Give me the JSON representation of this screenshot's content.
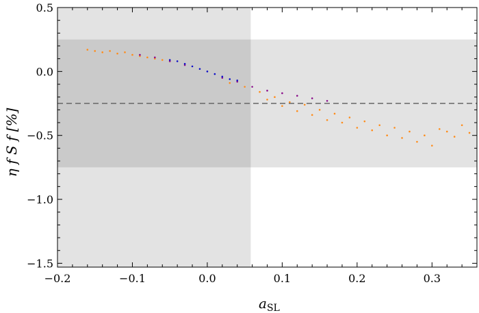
{
  "chart_data": {
    "type": "scatter",
    "title": "",
    "xlabel": "a",
    "xlabel_sub": "SL",
    "ylabel": "η f S f [%]",
    "xlim": [
      -0.2,
      0.36
    ],
    "ylim": [
      -1.53,
      0.5
    ],
    "x_ticks": [
      -0.2,
      -0.1,
      0.0,
      0.1,
      0.2,
      0.3
    ],
    "x_tick_labels": [
      "−0.2",
      "−0.1",
      "0.0",
      "0.1",
      "0.2",
      "0.3"
    ],
    "y_ticks": [
      0.5,
      0.0,
      -0.5,
      -1.0,
      -1.5
    ],
    "y_tick_labels": [
      "0.5",
      "0.0",
      "−0.5",
      "−1.0",
      "−1.5"
    ],
    "grid": false,
    "bands": [
      {
        "axis": "x",
        "from": -0.2,
        "to": 0.058,
        "color": "#e3e3e3"
      },
      {
        "axis": "y",
        "from": -0.75,
        "to": 0.25,
        "color": "#e3e3e3"
      }
    ],
    "hline": {
      "y": -0.25,
      "style": "dashed",
      "color": "#666666"
    },
    "series": [
      {
        "color": "#ff8c1a",
        "points": [
          [
            -0.16,
            0.17
          ],
          [
            -0.15,
            0.16
          ],
          [
            -0.14,
            0.15
          ],
          [
            -0.13,
            0.16
          ],
          [
            -0.12,
            0.14
          ],
          [
            -0.11,
            0.15
          ],
          [
            -0.1,
            0.13
          ],
          [
            -0.09,
            0.12
          ],
          [
            -0.08,
            0.11
          ],
          [
            -0.07,
            0.1
          ],
          [
            -0.06,
            0.09
          ],
          [
            -0.05,
            0.08
          ],
          [
            0.03,
            -0.09
          ],
          [
            0.05,
            -0.12
          ],
          [
            0.07,
            -0.16
          ],
          [
            0.08,
            -0.22
          ],
          [
            0.09,
            -0.2
          ],
          [
            0.1,
            -0.27
          ],
          [
            0.11,
            -0.24
          ],
          [
            0.12,
            -0.31
          ],
          [
            0.13,
            -0.26
          ],
          [
            0.14,
            -0.34
          ],
          [
            0.15,
            -0.3
          ],
          [
            0.16,
            -0.38
          ],
          [
            0.17,
            -0.33
          ],
          [
            0.18,
            -0.4
          ],
          [
            0.19,
            -0.36
          ],
          [
            0.2,
            -0.44
          ],
          [
            0.21,
            -0.39
          ],
          [
            0.22,
            -0.46
          ],
          [
            0.23,
            -0.42
          ],
          [
            0.24,
            -0.5
          ],
          [
            0.25,
            -0.44
          ],
          [
            0.26,
            -0.52
          ],
          [
            0.27,
            -0.47
          ],
          [
            0.28,
            -0.55
          ],
          [
            0.29,
            -0.5
          ],
          [
            0.3,
            -0.58
          ],
          [
            0.31,
            -0.45
          ],
          [
            0.32,
            -0.47
          ],
          [
            0.33,
            -0.51
          ],
          [
            0.34,
            -0.42
          ],
          [
            0.35,
            -0.48
          ]
        ]
      },
      {
        "color": "#8a0c8a",
        "points": [
          [
            -0.09,
            0.13
          ],
          [
            -0.07,
            0.11
          ],
          [
            -0.05,
            0.08
          ],
          [
            -0.03,
            0.05
          ],
          [
            0.02,
            -0.05
          ],
          [
            0.04,
            -0.08
          ],
          [
            0.06,
            -0.12
          ],
          [
            0.08,
            -0.15
          ],
          [
            0.1,
            -0.17
          ],
          [
            0.12,
            -0.19
          ],
          [
            0.14,
            -0.21
          ],
          [
            0.16,
            -0.23
          ]
        ]
      },
      {
        "color": "#1010c8",
        "points": [
          [
            -0.05,
            0.09
          ],
          [
            -0.04,
            0.08
          ],
          [
            -0.03,
            0.06
          ],
          [
            -0.02,
            0.04
          ],
          [
            -0.01,
            0.02
          ],
          [
            0.0,
            0.0
          ],
          [
            0.01,
            -0.02
          ],
          [
            0.02,
            -0.04
          ],
          [
            0.03,
            -0.06
          ],
          [
            0.04,
            -0.07
          ]
        ]
      }
    ]
  }
}
